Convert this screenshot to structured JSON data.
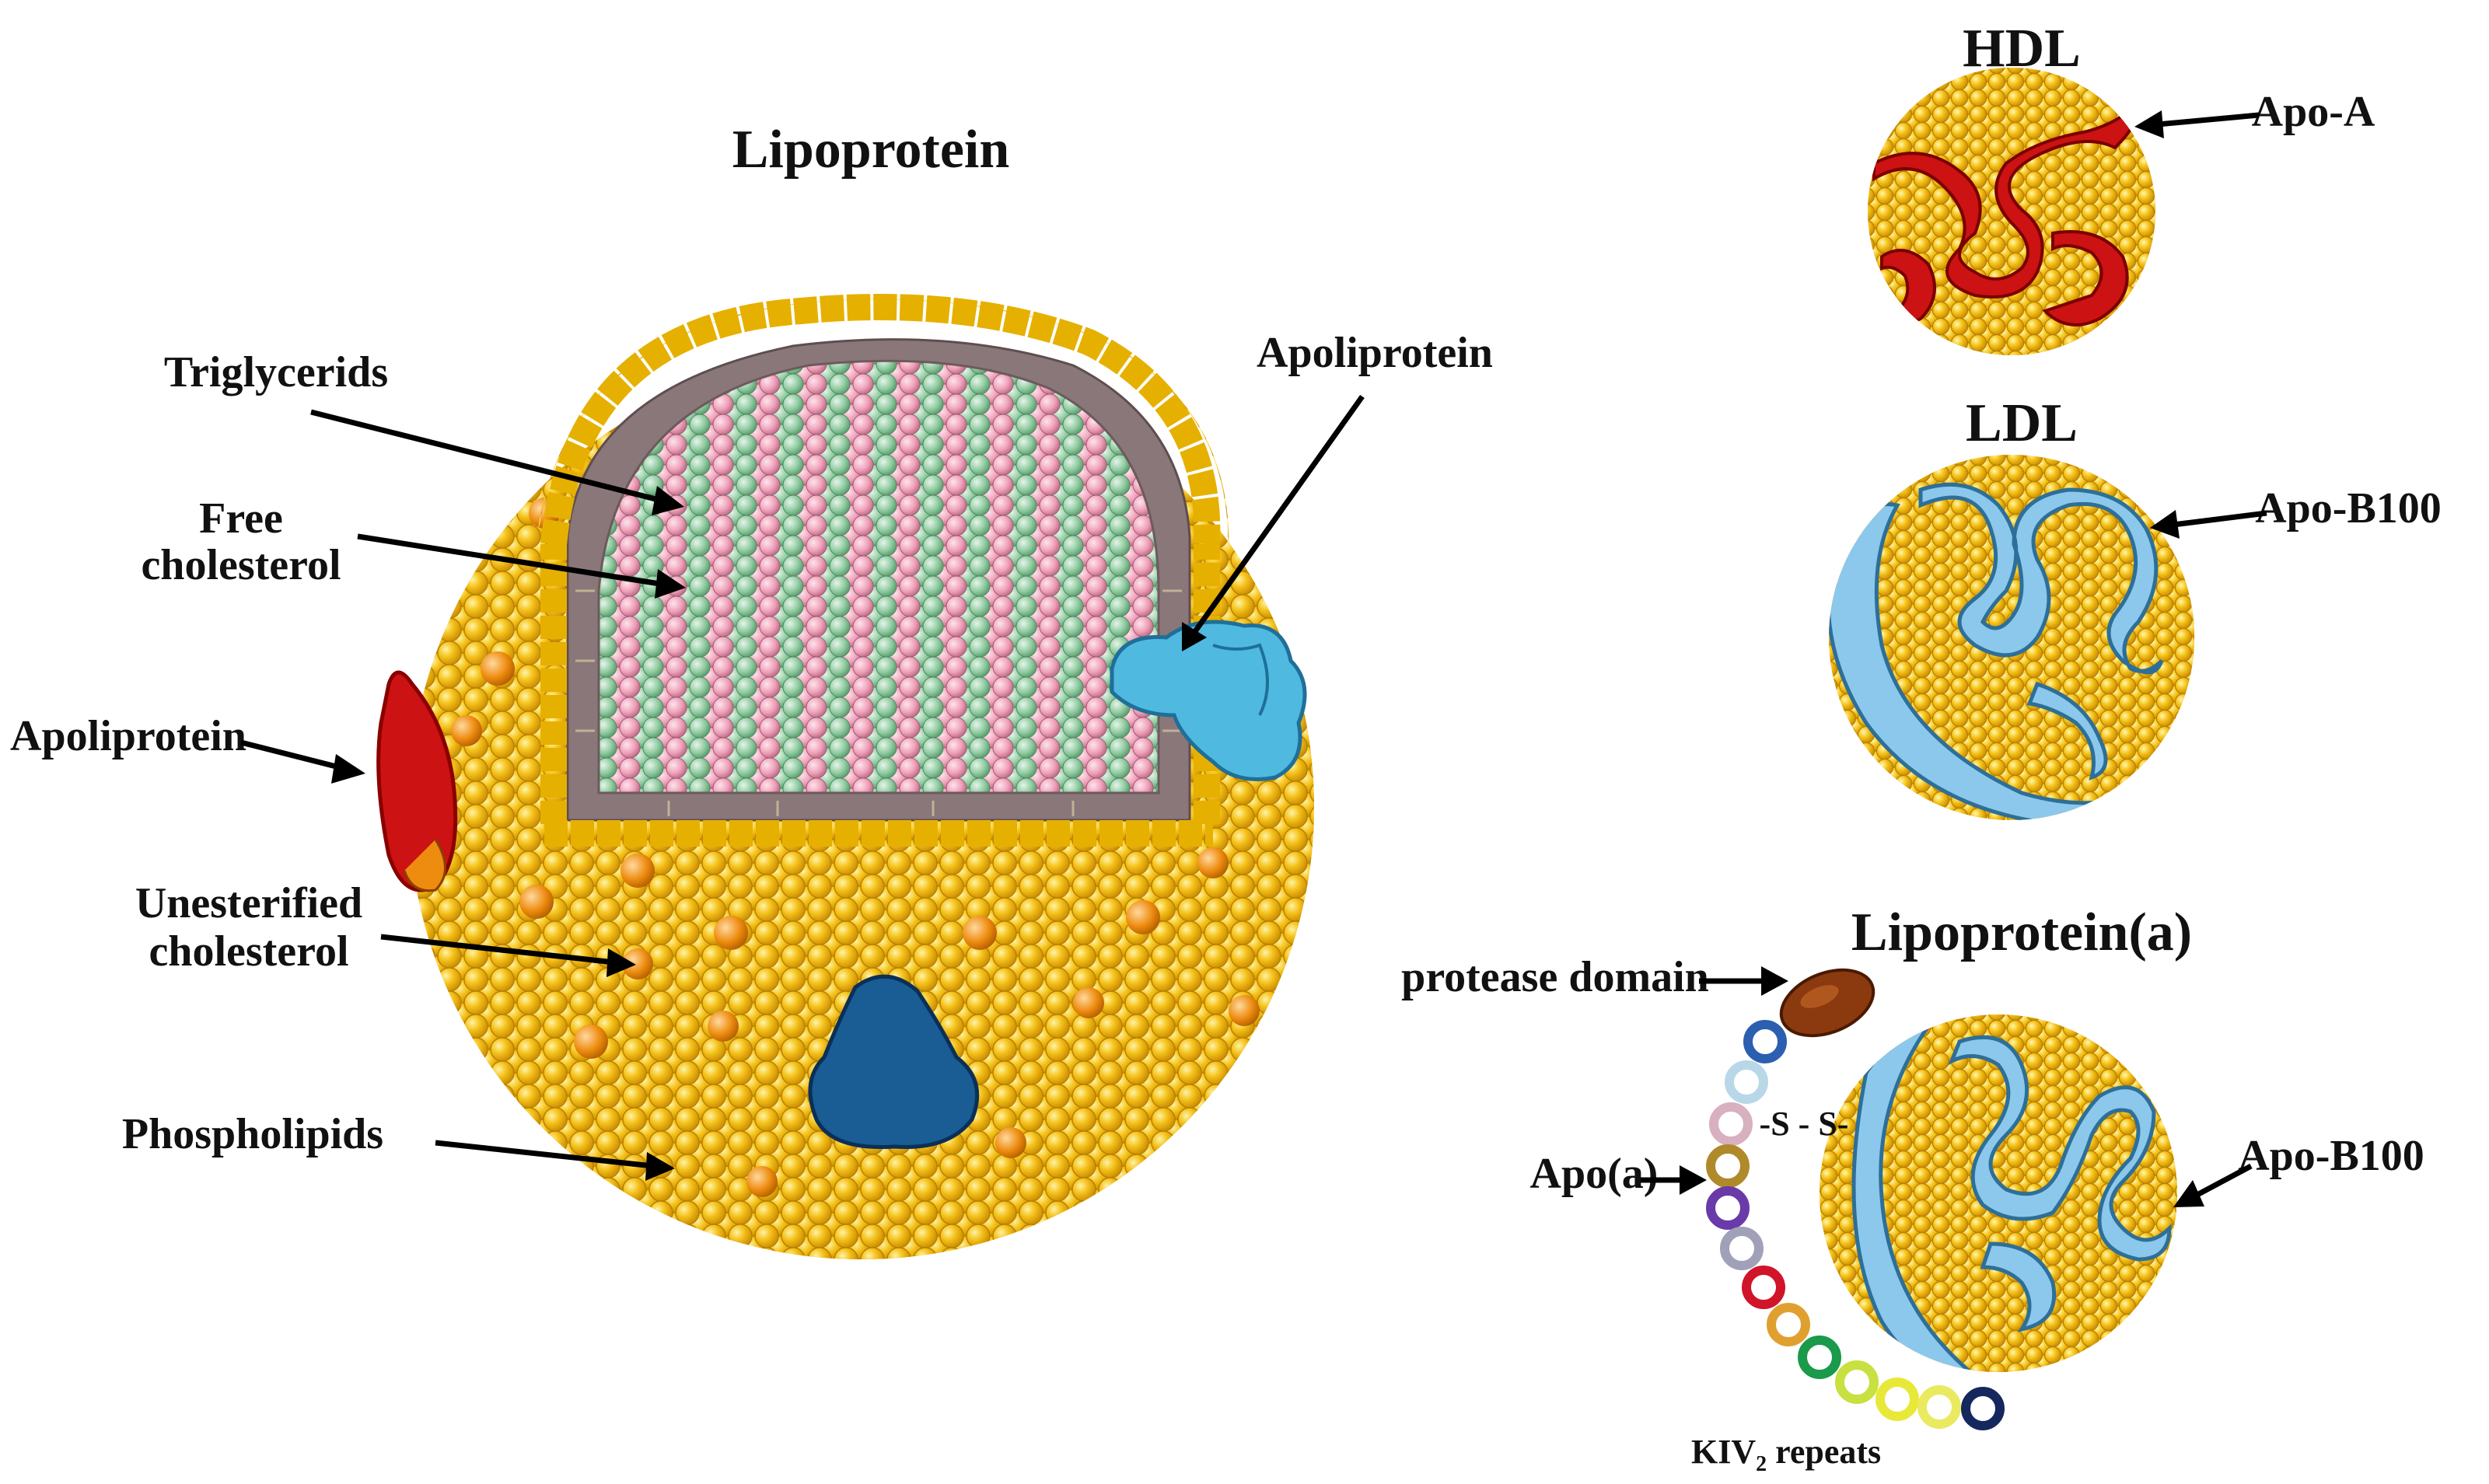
{
  "main_diagram": {
    "title": "Lipoprotein",
    "labels": {
      "triglycerids": "Triglycerids",
      "free_cholesterol_line1": "Free",
      "free_cholesterol_line2": "cholesterol",
      "apoliprotein_right": "Apoliprotein",
      "apoliprotein_left": "Apoliprotein",
      "unesterified_line1": "Unesterified",
      "unesterified_line2": "cholesterol",
      "phospholipids": "Phospholipids"
    }
  },
  "hdl": {
    "title": "HDL",
    "apo_label": "Apo-A"
  },
  "ldl": {
    "title": "LDL",
    "apo_label": "Apo-B100"
  },
  "lpa": {
    "title": "Lipoprotein(a)",
    "protease_label": "protease domain",
    "apoa_label": "Apo(a)",
    "apob_label": "Apo-B100",
    "disulfide_label": "-S - S-",
    "kiv_label": "KIV",
    "kiv_subscript": "2",
    "kiv_suffix": " repeats"
  },
  "colors": {
    "phospholipid": "#f5c518",
    "phospholipid_dark": "#e0a800",
    "unesterified": "#ee8c10",
    "triglyceride": "#ef9fb8",
    "cholesterol": "#8fcaa0",
    "core_gap": "#8a7779",
    "apo_light_blue": "#4fb9e0",
    "apo_dark_blue": "#1a5c94",
    "apo_red": "#cc1212",
    "apo_b_blue": "#8cc8ec",
    "protease": "#8a3a0e"
  }
}
